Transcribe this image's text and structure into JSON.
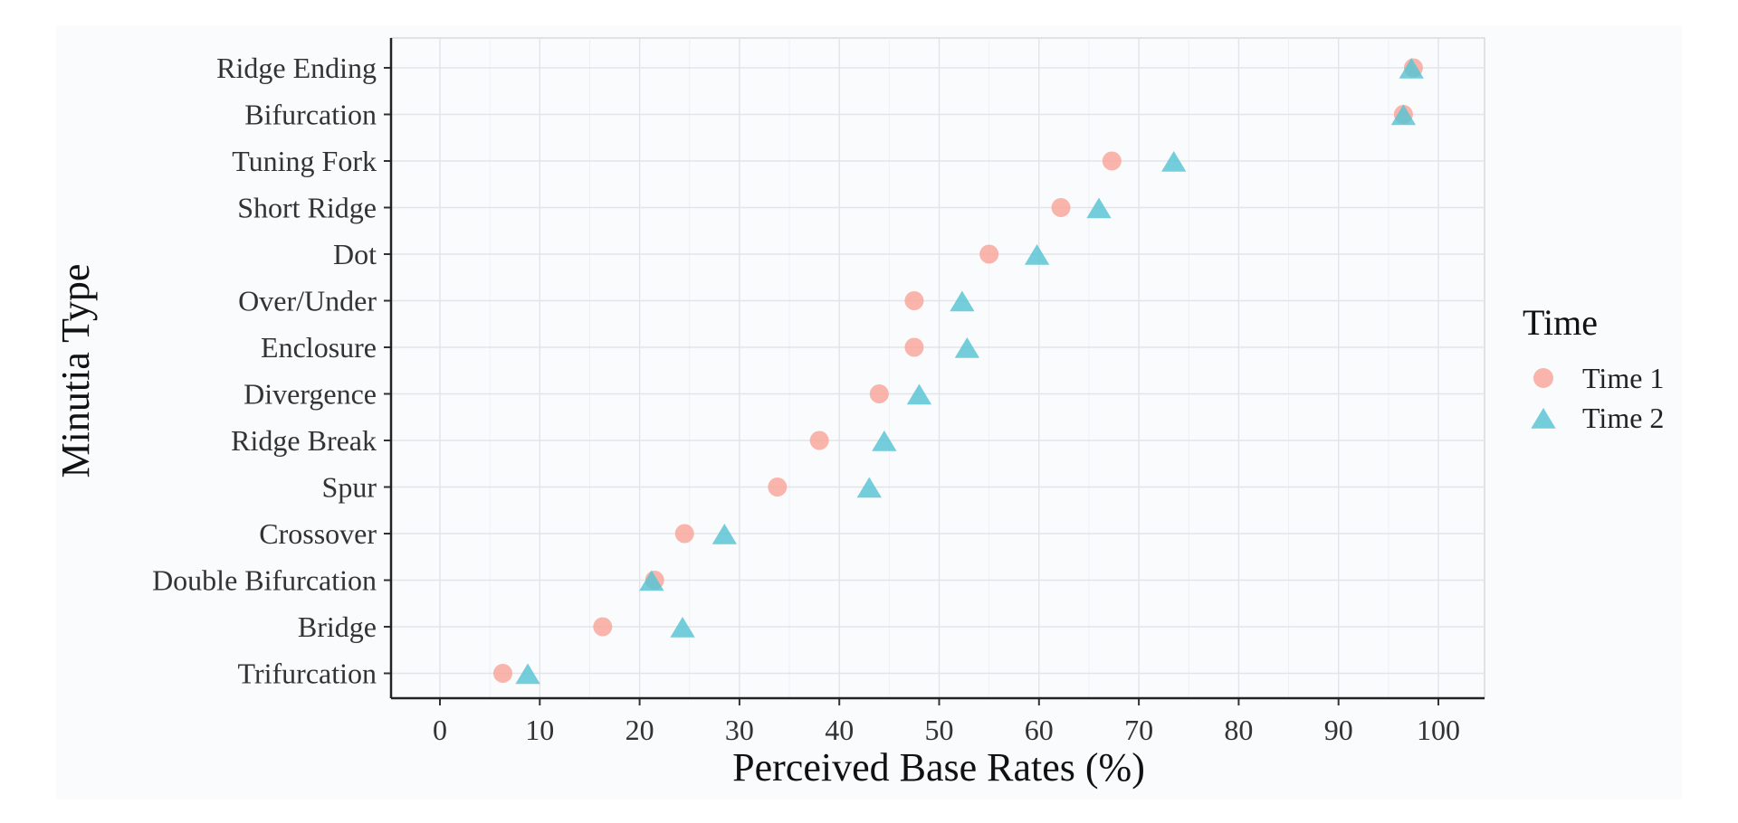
{
  "chart_data": {
    "type": "scatter",
    "xlabel": "Perceived Base Rates (%)",
    "ylabel": "Minutia Type",
    "xlim": [
      -5,
      105
    ],
    "xticks": [
      0,
      10,
      20,
      30,
      40,
      50,
      60,
      70,
      80,
      90,
      100
    ],
    "categories": [
      "Ridge Ending",
      "Bifurcation",
      "Tuning Fork",
      "Short Ridge",
      "Dot",
      "Over/Under",
      "Enclosure",
      "Divergence",
      "Ridge Break",
      "Spur",
      "Crossover",
      "Double Bifurcation",
      "Bridge",
      "Trifurcation"
    ],
    "series": [
      {
        "name": "Time 1",
        "marker": "circle",
        "color": "#f8a79c",
        "values": [
          97.5,
          96.5,
          67.3,
          62.2,
          55.0,
          47.5,
          47.5,
          44.0,
          38.0,
          33.8,
          24.5,
          21.5,
          16.3,
          6.3
        ]
      },
      {
        "name": "Time 2",
        "marker": "triangle",
        "color": "#5bc4d4",
        "values": [
          97.3,
          96.5,
          73.5,
          66.0,
          59.8,
          52.3,
          52.8,
          48.0,
          44.5,
          43.0,
          28.5,
          21.2,
          24.3,
          8.8
        ]
      }
    ],
    "grid": true,
    "legend": {
      "title": "Time",
      "position": "right"
    }
  }
}
